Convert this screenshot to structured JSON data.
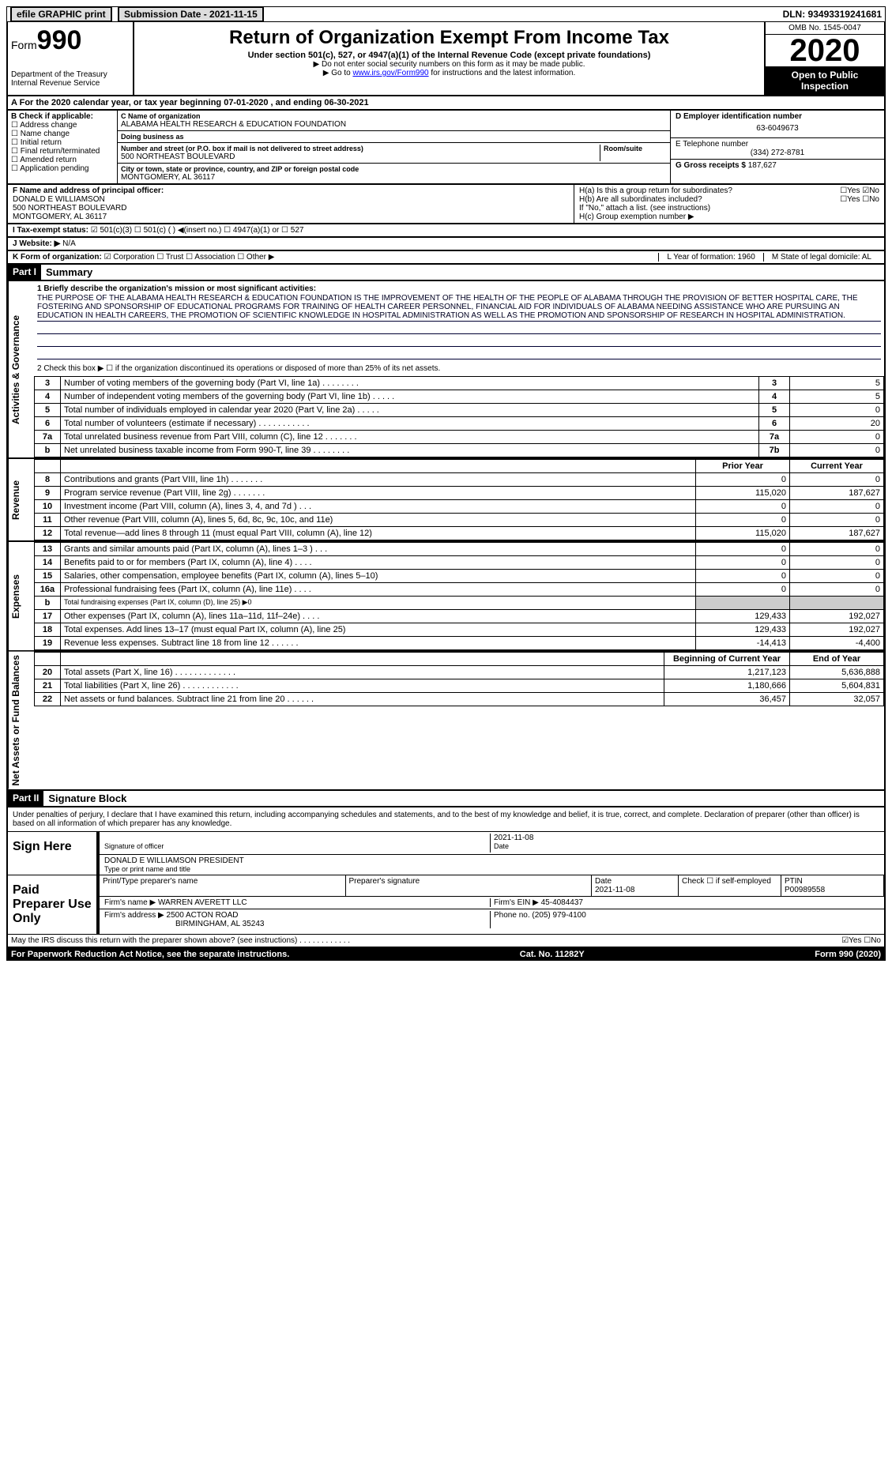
{
  "top": {
    "efile": "efile GRAPHIC print",
    "submission_label": "Submission Date - 2021-11-15",
    "dln_label": "DLN: 93493319241681"
  },
  "header": {
    "form_label": "Form",
    "form_num": "990",
    "dept": "Department of the Treasury Internal Revenue Service",
    "title": "Return of Organization Exempt From Income Tax",
    "sub": "Under section 501(c), 527, or 4947(a)(1) of the Internal Revenue Code (except private foundations)",
    "note1": "▶ Do not enter social security numbers on this form as it may be made public.",
    "note2_pre": "▶ Go to ",
    "note2_link": "www.irs.gov/Form990",
    "note2_post": " for instructions and the latest information.",
    "omb": "OMB No. 1545-0047",
    "year": "2020",
    "inspect": "Open to Public Inspection"
  },
  "rowA": "For the 2020 calendar year, or tax year beginning 07-01-2020    , and ending 06-30-2021",
  "boxB": {
    "hdr": "B Check if applicable:",
    "items": [
      "Address change",
      "Name change",
      "Initial return",
      "Final return/terminated",
      "Amended return",
      "Application pending"
    ]
  },
  "boxC": {
    "name_lbl": "C Name of organization",
    "name": "ALABAMA HEALTH RESEARCH & EDUCATION FOUNDATION",
    "dba_lbl": "Doing business as",
    "dba": "",
    "street_lbl": "Number and street (or P.O. box if mail is not delivered to street address)",
    "street": "500 NORTHEAST BOULEVARD",
    "room_lbl": "Room/suite",
    "city_lbl": "City or town, state or province, country, and ZIP or foreign postal code",
    "city": "MONTGOMERY, AL  36117"
  },
  "boxD": {
    "lbl": "D Employer identification number",
    "val": "63-6049673"
  },
  "boxE": {
    "lbl": "E Telephone number",
    "val": "(334) 272-8781"
  },
  "boxG": {
    "lbl": "G Gross receipts $",
    "val": "187,627"
  },
  "boxF": {
    "lbl": "F  Name and address of principal officer:",
    "name": "DONALD E WILLIAMSON",
    "addr1": "500 NORTHEAST BOULEVARD",
    "addr2": "MONTGOMERY, AL  36117"
  },
  "boxH": {
    "ha": "H(a)  Is this a group return for subordinates?",
    "ha_yn": "☐Yes ☑No",
    "hb": "H(b)  Are all subordinates included?",
    "hb_yn": "☐Yes ☐No",
    "hb_note": "If \"No,\" attach a list. (see instructions)",
    "hc": "H(c)  Group exemption number ▶"
  },
  "rowI": {
    "lbl": "I  Tax-exempt status:",
    "opts": "☑ 501(c)(3)    ☐ 501(c) (  ) ◀(insert no.)    ☐ 4947(a)(1) or    ☐ 527"
  },
  "rowJ": {
    "lbl": "J  Website: ▶",
    "val": "N/A"
  },
  "rowK": {
    "lbl": "K Form of organization:",
    "opts": "☑ Corporation ☐ Trust ☐ Association ☐ Other ▶",
    "l_lbl": "L Year of formation: 1960",
    "m_lbl": "M State of legal domicile: AL"
  },
  "part1": {
    "hdr": "Part I",
    "title": "Summary",
    "line1_lbl": "1  Briefly describe the organization's mission or most significant activities:",
    "mission": "THE PURPOSE OF THE ALABAMA HEALTH RESEARCH & EDUCATION FOUNDATION IS THE IMPROVEMENT OF THE HEALTH OF THE PEOPLE OF ALABAMA THROUGH THE PROVISION OF BETTER HOSPITAL CARE, THE FOSTERING AND SPONSORSHIP OF EDUCATIONAL PROGRAMS FOR TRAINING OF HEALTH CAREER PERSONNEL, FINANCIAL AID FOR INDIVIDUALS OF ALABAMA NEEDING ASSISTANCE WHO ARE PURSUING AN EDUCATION IN HEALTH CAREERS, THE PROMOTION OF SCIENTIFIC KNOWLEDGE IN HOSPITAL ADMINISTRATION AS WELL AS THE PROMOTION AND SPONSORSHIP OF RESEARCH IN HOSPITAL ADMINISTRATION.",
    "line2": "2   Check this box ▶ ☐ if the organization discontinued its operations or disposed of more than 25% of its net assets.",
    "gov_rows": [
      {
        "n": "3",
        "d": "Number of voting members of the governing body (Part VI, line 1a)  .  .  .  .  .  .  .  .",
        "b": "3",
        "v": "5"
      },
      {
        "n": "4",
        "d": "Number of independent voting members of the governing body (Part VI, line 1b)  .  .  .  .  .",
        "b": "4",
        "v": "5"
      },
      {
        "n": "5",
        "d": "Total number of individuals employed in calendar year 2020 (Part V, line 2a)  .  .  .  .  .",
        "b": "5",
        "v": "0"
      },
      {
        "n": "6",
        "d": "Total number of volunteers (estimate if necessary)  .  .  .  .  .  .  .  .  .  .  .",
        "b": "6",
        "v": "20"
      },
      {
        "n": "7a",
        "d": "Total unrelated business revenue from Part VIII, column (C), line 12  .  .  .  .  .  .  .",
        "b": "7a",
        "v": "0"
      },
      {
        "n": "b",
        "d": "Net unrelated business taxable income from Form 990-T, line 39  .  .  .  .  .  .  .  .",
        "b": "7b",
        "v": "0"
      }
    ],
    "col_hdr_prior": "Prior Year",
    "col_hdr_curr": "Current Year",
    "rev_rows": [
      {
        "n": "8",
        "d": "Contributions and grants (Part VIII, line 1h)  .  .  .  .  .  .  .",
        "p": "0",
        "c": "0"
      },
      {
        "n": "9",
        "d": "Program service revenue (Part VIII, line 2g)  .  .  .  .  .  .  .",
        "p": "115,020",
        "c": "187,627"
      },
      {
        "n": "10",
        "d": "Investment income (Part VIII, column (A), lines 3, 4, and 7d )  .  .  .",
        "p": "0",
        "c": "0"
      },
      {
        "n": "11",
        "d": "Other revenue (Part VIII, column (A), lines 5, 6d, 8c, 9c, 10c, and 11e)",
        "p": "0",
        "c": "0"
      },
      {
        "n": "12",
        "d": "Total revenue—add lines 8 through 11 (must equal Part VIII, column (A), line 12)",
        "p": "115,020",
        "c": "187,627"
      }
    ],
    "exp_rows": [
      {
        "n": "13",
        "d": "Grants and similar amounts paid (Part IX, column (A), lines 1–3 )  .  .  .",
        "p": "0",
        "c": "0"
      },
      {
        "n": "14",
        "d": "Benefits paid to or for members (Part IX, column (A), line 4)  .  .  .  .",
        "p": "0",
        "c": "0"
      },
      {
        "n": "15",
        "d": "Salaries, other compensation, employee benefits (Part IX, column (A), lines 5–10)",
        "p": "0",
        "c": "0"
      },
      {
        "n": "16a",
        "d": "Professional fundraising fees (Part IX, column (A), line 11e)  .  .  .  .",
        "p": "0",
        "c": "0"
      },
      {
        "n": "b",
        "d": "Total fundraising expenses (Part IX, column (D), line 25) ▶0",
        "p": "",
        "c": "",
        "gray": true
      },
      {
        "n": "17",
        "d": "Other expenses (Part IX, column (A), lines 11a–11d, 11f–24e)  .  .  .  .",
        "p": "129,433",
        "c": "192,027"
      },
      {
        "n": "18",
        "d": "Total expenses. Add lines 13–17 (must equal Part IX, column (A), line 25)",
        "p": "129,433",
        "c": "192,027"
      },
      {
        "n": "19",
        "d": "Revenue less expenses. Subtract line 18 from line 12  .  .  .  .  .  .",
        "p": "-14,413",
        "c": "-4,400"
      }
    ],
    "na_hdr_beg": "Beginning of Current Year",
    "na_hdr_end": "End of Year",
    "na_rows": [
      {
        "n": "20",
        "d": "Total assets (Part X, line 16)  .  .  .  .  .  .  .  .  .  .  .  .  .",
        "p": "1,217,123",
        "c": "5,636,888"
      },
      {
        "n": "21",
        "d": "Total liabilities (Part X, line 26)  .  .  .  .  .  .  .  .  .  .  .  .",
        "p": "1,180,666",
        "c": "5,604,831"
      },
      {
        "n": "22",
        "d": "Net assets or fund balances. Subtract line 21 from line 20  .  .  .  .  .  .",
        "p": "36,457",
        "c": "32,057"
      }
    ]
  },
  "part2": {
    "hdr": "Part II",
    "title": "Signature Block",
    "decl": "Under penalties of perjury, I declare that I have examined this return, including accompanying schedules and statements, and to the best of my knowledge and belief, it is true, correct, and complete. Declaration of preparer (other than officer) is based on all information of which preparer has any knowledge.",
    "sign_here": "Sign Here",
    "sig_officer_lbl": "Signature of officer",
    "sig_date": "2021-11-08",
    "date_lbl": "Date",
    "typed_name": "DONALD E WILLIAMSON  PRESIDENT",
    "typed_lbl": "Type or print name and title",
    "paid_prep": "Paid Preparer Use Only",
    "prep_name_lbl": "Print/Type preparer's name",
    "prep_sig_lbl": "Preparer's signature",
    "prep_date_lbl": "Date",
    "prep_date": "2021-11-08",
    "self_emp": "Check ☐ if self-employed",
    "ptin_lbl": "PTIN",
    "ptin": "P00989558",
    "firm_name_lbl": "Firm's name    ▶",
    "firm_name": "WARREN AVERETT LLC",
    "firm_ein_lbl": "Firm's EIN ▶",
    "firm_ein": "45-4084437",
    "firm_addr_lbl": "Firm's address ▶",
    "firm_addr": "2500 ACTON ROAD",
    "firm_city": "BIRMINGHAM, AL  35243",
    "phone_lbl": "Phone no.",
    "phone": "(205) 979-4100",
    "discuss": "May the IRS discuss this return with the preparer shown above? (see instructions)  .  .  .  .  .  .  .  .  .  .  .  .",
    "discuss_yn": "☑Yes  ☐No"
  },
  "footer": {
    "pra": "For Paperwork Reduction Act Notice, see the separate instructions.",
    "cat": "Cat. No. 11282Y",
    "form": "Form 990 (2020)"
  }
}
